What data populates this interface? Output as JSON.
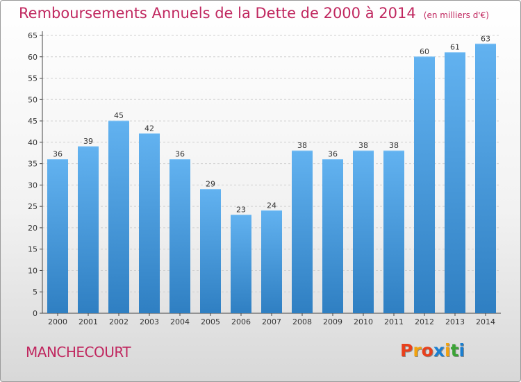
{
  "header": {
    "title": "Remboursements Annuels de la Dette de 2000 à 2014",
    "unit": "(en milliers d'€)"
  },
  "commune": "MANCHECOURT",
  "logo": {
    "letters": [
      "P",
      "r",
      "o",
      "x",
      "i",
      "t",
      "i"
    ],
    "colors": [
      "#e8401c",
      "#f2a20e",
      "#e8401c",
      "#1a7fd1",
      "#f2a20e",
      "#3aa335",
      "#1a7fd1"
    ]
  },
  "colors": {
    "bar_top": "#62b2f0",
    "bar_bottom": "#2f7fc2",
    "title": "#c0275f"
  },
  "chart_data": {
    "type": "bar",
    "title": "Remboursements Annuels de la Dette de 2000 à 2014",
    "xlabel": "",
    "ylabel": "",
    "categories": [
      "2000",
      "2001",
      "2002",
      "2003",
      "2004",
      "2005",
      "2006",
      "2007",
      "2008",
      "2009",
      "2010",
      "2011",
      "2012",
      "2013",
      "2014"
    ],
    "values": [
      36,
      39,
      45,
      42,
      36,
      29,
      23,
      24,
      38,
      36,
      38,
      38,
      60,
      61,
      63
    ],
    "ylim": [
      0,
      65
    ],
    "yticks": [
      0,
      5,
      10,
      15,
      20,
      25,
      30,
      35,
      40,
      45,
      50,
      55,
      60,
      65
    ],
    "grid": true
  }
}
